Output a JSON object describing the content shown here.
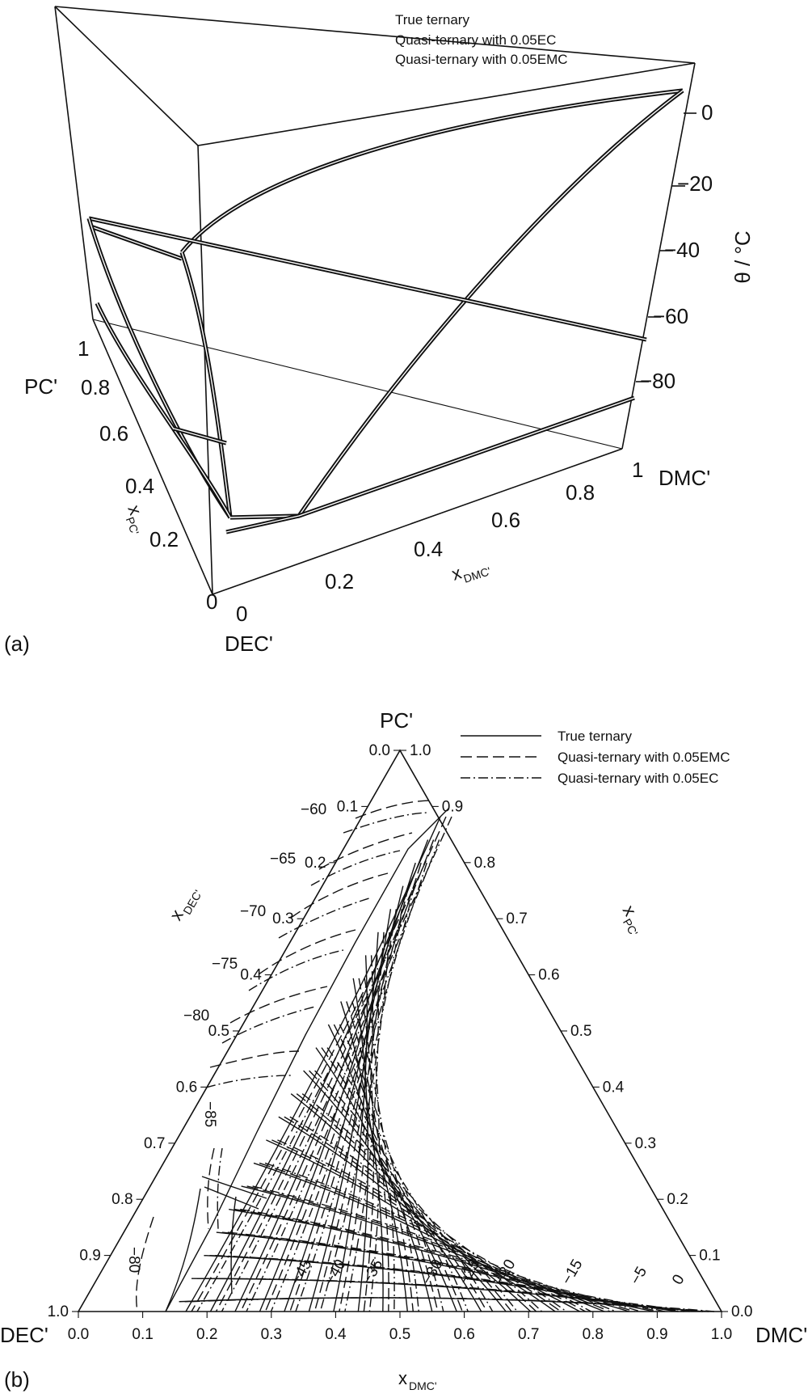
{
  "panel_a": {
    "panel_label": "(a)",
    "legend": [
      "True ternary",
      "Quasi-ternary with 0.05EC",
      "Quasi-ternary with 0.05EMC"
    ],
    "vertex_labels": {
      "top_left": "PC'",
      "bottom": "DEC'",
      "right": "DMC'"
    },
    "x_dmc_axis": {
      "label_main": "x",
      "label_sub": "DMC'",
      "ticks": [
        "0",
        "0.2",
        "0.4",
        "0.6",
        "0.8",
        "1"
      ]
    },
    "x_pc_axis": {
      "label_main": "x",
      "label_sub": "PC'",
      "ticks": [
        "0",
        "0.2",
        "0.4",
        "0.6",
        "0.8",
        "1"
      ]
    },
    "theta_axis": {
      "label": "θ / °C",
      "ticks": [
        "0",
        "−20",
        "−40",
        "−60",
        "−80"
      ]
    }
  },
  "panel_b": {
    "panel_label": "(b)",
    "legend": [
      {
        "label": "True ternary",
        "style": "solid"
      },
      {
        "label": "Quasi-ternary with 0.05EMC",
        "style": "dashed"
      },
      {
        "label": "Quasi-ternary with 0.05EC",
        "style": "dashdot"
      }
    ],
    "vertex_labels": {
      "top": "PC'",
      "left": "DEC'",
      "right": "DMC'"
    },
    "x_dmc_axis": {
      "label_main": "x",
      "label_sub": "DMC'",
      "ticks": [
        "0.0",
        "0.1",
        "0.2",
        "0.3",
        "0.4",
        "0.5",
        "0.6",
        "0.7",
        "0.8",
        "0.9",
        "1.0"
      ]
    },
    "x_dec_axis": {
      "label_main": "x",
      "label_sub": "DEC'",
      "ticks": [
        "0.0",
        "0.1",
        "0.2",
        "0.3",
        "0.4",
        "0.5",
        "0.6",
        "0.7",
        "0.8",
        "0.9",
        "1.0"
      ]
    },
    "x_pc_axis": {
      "label_main": "x",
      "label_sub": "PC'",
      "ticks": [
        "1.0",
        "0.9",
        "0.8",
        "0.7",
        "0.6",
        "0.5",
        "0.4",
        "0.3",
        "0.2",
        "0.1",
        "0.0"
      ]
    },
    "isotherm_labels_upper": [
      "−60",
      "−65",
      "−70",
      "−75",
      "−80",
      "−85"
    ],
    "isotherm_labels_lower": [
      "−80",
      "−45",
      "−40",
      "−35",
      "−30",
      "−25",
      "−20",
      "−15",
      "−5",
      "0"
    ]
  }
}
